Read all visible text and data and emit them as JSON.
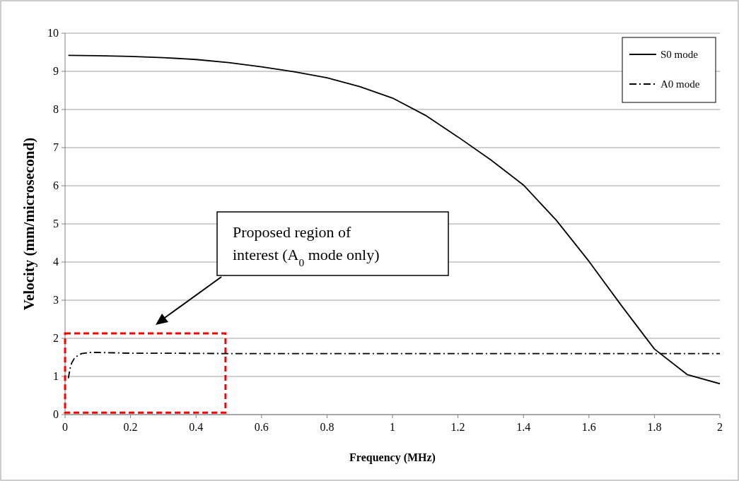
{
  "chart_data": {
    "type": "line",
    "xlabel": "Frequency (MHz)",
    "ylabel": "Velocity (mm/microsecond)",
    "xlim": [
      0,
      2
    ],
    "xticks": [
      0,
      0.2,
      0.4,
      0.6,
      0.8,
      1,
      1.2,
      1.4,
      1.6,
      1.8,
      2
    ],
    "ylim": [
      0,
      10
    ],
    "yticks": [
      0,
      1,
      2,
      3,
      4,
      5,
      6,
      7,
      8,
      9,
      10
    ],
    "grid": "y",
    "legend": "top right",
    "series": [
      {
        "name": "S0 mode",
        "color": "#000000",
        "line_style": "solid",
        "x": [
          0.01,
          0.1,
          0.2,
          0.3,
          0.4,
          0.5,
          0.6,
          0.7,
          0.8,
          0.9,
          1.0,
          1.1,
          1.2,
          1.3,
          1.4,
          1.5,
          1.6,
          1.7,
          1.8,
          1.9,
          2.0
        ],
        "values": [
          9.42,
          9.41,
          9.39,
          9.36,
          9.31,
          9.23,
          9.12,
          8.99,
          8.83,
          8.6,
          8.3,
          7.85,
          7.28,
          6.68,
          6.02,
          5.1,
          4.02,
          2.85,
          1.72,
          1.05,
          0.81
        ]
      },
      {
        "name": "A0 mode",
        "color": "#000000",
        "line_style": "dashdot",
        "x": [
          0.01,
          0.015,
          0.02,
          0.03,
          0.05,
          0.08,
          0.1,
          0.15,
          0.2,
          0.3,
          0.5,
          1.0,
          1.5,
          2.0
        ],
        "values": [
          0.95,
          1.2,
          1.35,
          1.5,
          1.6,
          1.63,
          1.63,
          1.62,
          1.61,
          1.61,
          1.6,
          1.6,
          1.6,
          1.6
        ]
      }
    ],
    "annotations": [
      "Proposed region of interest (A$_{0}$ mode only)"
    ]
  }
}
